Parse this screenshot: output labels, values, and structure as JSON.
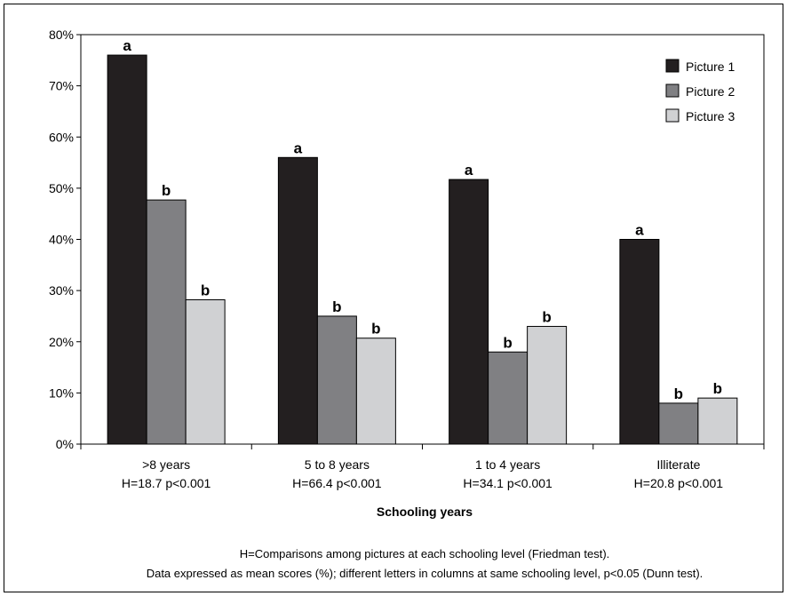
{
  "chart_data": {
    "type": "bar",
    "categories": [
      ">8 years",
      "5 to 8 years",
      "1 to 4 years",
      "Illiterate"
    ],
    "category_stats": [
      "H=18.7 p<0.001",
      "H=66.4 p<0.001",
      "H=34.1 p<0.001",
      "H=20.8 p<0.001"
    ],
    "series": [
      {
        "name": "Picture 1",
        "color": "#231f20",
        "values": [
          76,
          56,
          51.7,
          40
        ],
        "letters": [
          "a",
          "a",
          "a",
          "a"
        ]
      },
      {
        "name": "Picture 2",
        "color": "#808083",
        "values": [
          47.7,
          25,
          18,
          8
        ],
        "letters": [
          "b",
          "b",
          "b",
          "b"
        ]
      },
      {
        "name": "Picture 3",
        "color": "#d0d1d3",
        "values": [
          28.2,
          20.7,
          23,
          9
        ],
        "letters": [
          "b",
          "b",
          "b",
          "b"
        ]
      }
    ],
    "ylim": [
      0,
      80
    ],
    "yticks": [
      "0%",
      "10%",
      "20%",
      "30%",
      "40%",
      "50%",
      "60%",
      "70%",
      "80%"
    ],
    "xlabel": "Schooling years",
    "ylabel": "",
    "grid": false,
    "legend_position": "top-right"
  },
  "notes": [
    "H=Comparisons among pictures at each schooling level (Friedman test).",
    "Data expressed as mean scores (%); different letters in columns at same schooling level, p<0.05 (Dunn test)."
  ]
}
